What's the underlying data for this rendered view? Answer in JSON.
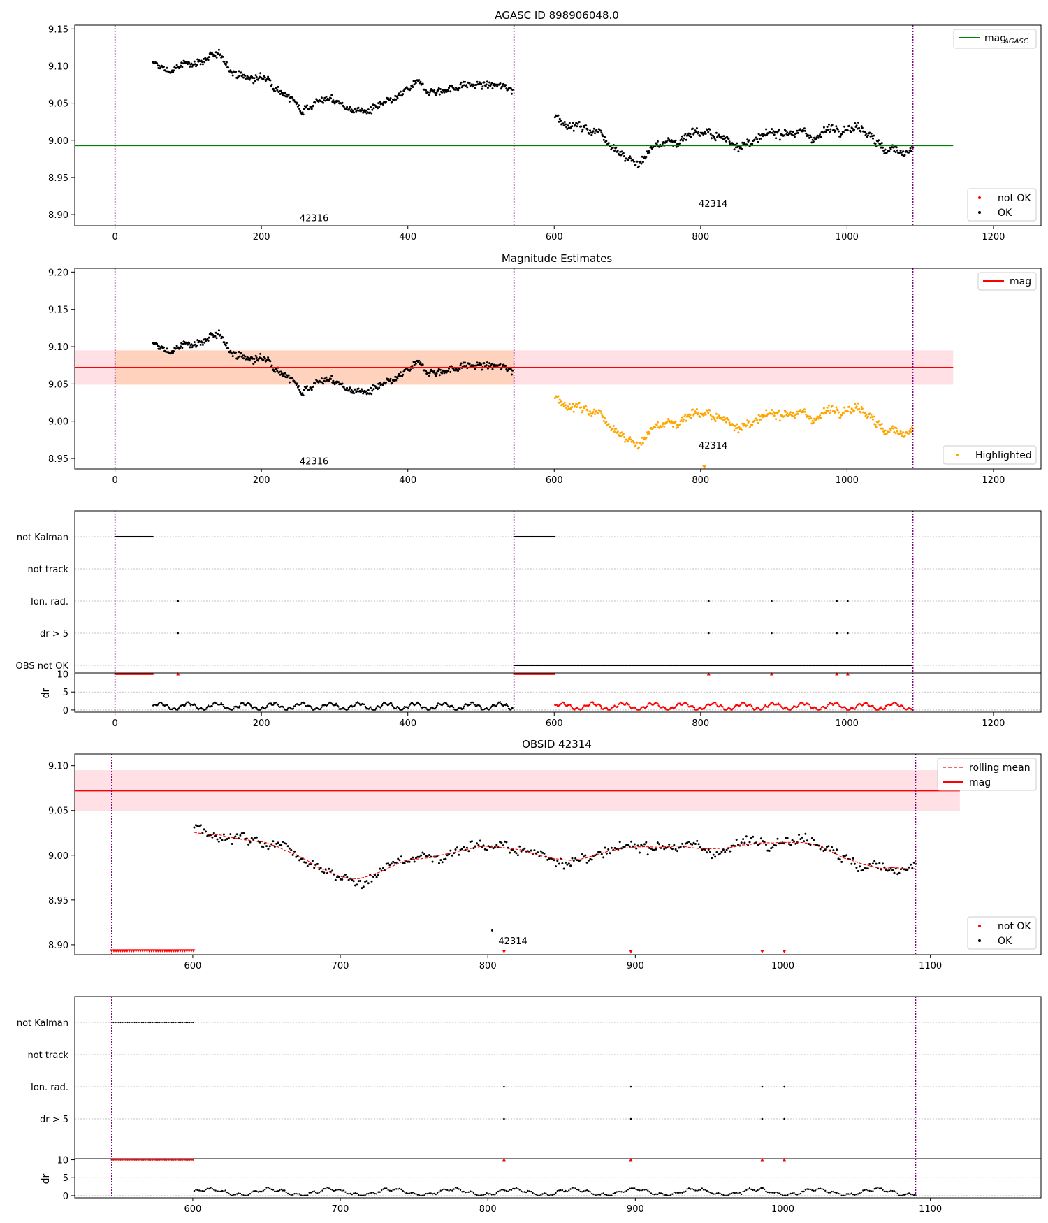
{
  "chart_data": [
    {
      "id": "p1",
      "type": "scatter",
      "title": "AGASC ID 898906048.0",
      "xlim": [
        -55,
        1265
      ],
      "ylim": [
        8.885,
        9.155
      ],
      "xticks": [
        0,
        200,
        400,
        600,
        800,
        1000,
        1200
      ],
      "yticks": [
        8.9,
        8.95,
        9.0,
        9.05,
        9.1,
        9.15
      ],
      "ytick_decimals": 2,
      "vlines": [
        0,
        545,
        1090
      ],
      "series": [
        {
          "name": "mag_AGASC",
          "kind": "hline",
          "y": 8.993,
          "x": [
            -55,
            1145
          ],
          "color": "#008000"
        }
      ],
      "scatter_segments": [
        {
          "x0": 52,
          "x1": 543,
          "n": 470,
          "ref": "obs42316",
          "color": "#000000"
        },
        {
          "x0": 601,
          "x1": 1090,
          "n": 440,
          "ref": "obs42314",
          "color": "#000000"
        }
      ],
      "annotations": [
        {
          "text": "42316",
          "x": 272,
          "y": 8.895
        },
        {
          "text": "42314",
          "x": 817,
          "y": 8.914
        }
      ],
      "legend_top": [
        {
          "label_main": "mag",
          "label_sub": "AGASC",
          "kind": "line",
          "color": "#008000"
        }
      ],
      "legend_bottom": [
        {
          "label": "not OK",
          "kind": "dot",
          "color": "#ff0000"
        },
        {
          "label": "OK",
          "kind": "dot",
          "color": "#000000"
        }
      ]
    },
    {
      "id": "p2",
      "type": "scatter",
      "title": "Magnitude Estimates",
      "xlim": [
        -55,
        1265
      ],
      "ylim": [
        8.936,
        9.205
      ],
      "xticks": [
        0,
        200,
        400,
        600,
        800,
        1000,
        1200
      ],
      "yticks": [
        8.95,
        9.0,
        9.05,
        9.1,
        9.15,
        9.2
      ],
      "ytick_decimals": 2,
      "vlines": [
        0,
        545,
        1090
      ],
      "band": {
        "x0": -55,
        "x1": 1145,
        "y0": 9.049,
        "y1": 9.095,
        "color": "rgba(255,0,40,0.12)"
      },
      "band2": {
        "x0": 0,
        "x1": 545,
        "y0": 9.049,
        "y1": 9.095,
        "color": "rgba(255,140,0,0.17)"
      },
      "series": [
        {
          "name": "mag",
          "kind": "hline",
          "y": 9.072,
          "x": [
            -55,
            1145
          ],
          "color": "#ff0000"
        }
      ],
      "scatter_segments": [
        {
          "x0": 52,
          "x1": 543,
          "n": 470,
          "ref": "obs42316",
          "color": "#000000"
        },
        {
          "x0": 601,
          "x1": 1090,
          "n": 440,
          "ref": "obs42314",
          "color": "#ffa500"
        }
      ],
      "markers": [
        {
          "x": 805,
          "y": 8.938,
          "color": "#ffa500"
        }
      ],
      "annotations": [
        {
          "text": "42316",
          "x": 272,
          "y": 8.946
        },
        {
          "text": "42314",
          "x": 817,
          "y": 8.967
        }
      ],
      "legend_top": [
        {
          "label": "mag",
          "kind": "line",
          "color": "#ff0000"
        }
      ],
      "legend_bottom": [
        {
          "label": "Highlighted",
          "kind": "dot",
          "color": "#ffa500"
        }
      ]
    },
    {
      "id": "p3",
      "type": "flags",
      "xlim": [
        -55,
        1265
      ],
      "xticks": [
        0,
        200,
        400,
        600,
        800,
        1000,
        1200
      ],
      "vlines": [
        0,
        545,
        1090
      ],
      "categories": [
        "not Kalman",
        "not track",
        "Ion. rad.",
        "dr > 5",
        "OBS not OK"
      ],
      "flag_runs": [
        {
          "cat": "not Kalman",
          "x0": 0,
          "x1": 52
        },
        {
          "cat": "not Kalman",
          "x0": 545,
          "x1": 601
        },
        {
          "cat": "OBS not OK",
          "x0": 545,
          "x1": 1090
        }
      ],
      "flag_points": [
        {
          "cat": "Ion. rad.",
          "x": [
            86,
            811,
            897,
            986,
            1001
          ]
        },
        {
          "cat": "dr > 5",
          "x": [
            86,
            811,
            897,
            986,
            1001
          ]
        }
      ],
      "dr_panel": {
        "ylabel": "dr",
        "yticks": [
          0,
          5,
          10
        ],
        "ylim": [
          -0.6,
          10.3
        ],
        "red_runs": [
          {
            "x0": 0,
            "x1": 52
          },
          {
            "x0": 545,
            "x1": 601
          }
        ],
        "red_points": [
          86,
          811,
          897,
          986,
          1001
        ],
        "segments": [
          {
            "x0": 52,
            "x1": 543,
            "n": 470,
            "color": "#000000"
          },
          {
            "x0": 601,
            "x1": 1090,
            "n": 440,
            "color": "#ff0000"
          }
        ]
      }
    },
    {
      "id": "p4",
      "type": "scatter",
      "title": "OBSID 42314",
      "xlim": [
        520,
        1175
      ],
      "ylim": [
        8.889,
        9.113
      ],
      "xticks": [
        600,
        700,
        800,
        900,
        1000,
        1100
      ],
      "yticks": [
        8.9,
        8.95,
        9.0,
        9.05,
        9.1
      ],
      "ytick_decimals": 2,
      "vlines": [
        545,
        1090
      ],
      "band": {
        "x0": 520,
        "x1": 1120,
        "y0": 9.049,
        "y1": 9.095,
        "color": "rgba(255,0,40,0.12)"
      },
      "series": [
        {
          "name": "mag",
          "kind": "hline",
          "y": 9.072,
          "x": [
            520,
            1120
          ],
          "color": "#ff0000"
        },
        {
          "name": "rolling mean",
          "kind": "rolling",
          "color": "#ff0000"
        }
      ],
      "scatter_segments": [
        {
          "x0": 601,
          "x1": 1090,
          "n": 440,
          "ref": "obs42314",
          "color": "#000000"
        }
      ],
      "extra_points": [
        {
          "x": 803,
          "y": 8.916,
          "color": "#000000"
        }
      ],
      "red_run": {
        "x0": 545,
        "x1": 601,
        "y": 8.893
      },
      "red_markers": [
        811,
        897,
        986,
        1001
      ],
      "annotations": [
        {
          "text": "42314",
          "x": 817,
          "y": 8.904
        }
      ],
      "legend_top": [
        {
          "label": "rolling mean",
          "kind": "dashed",
          "color": "#ff0000"
        },
        {
          "label": "mag",
          "kind": "line",
          "color": "#ff0000"
        }
      ],
      "legend_bottom": [
        {
          "label": "not OK",
          "kind": "dot",
          "color": "#ff0000"
        },
        {
          "label": "OK",
          "kind": "dot",
          "color": "#000000"
        }
      ]
    },
    {
      "id": "p5",
      "type": "flags",
      "xlim": [
        520,
        1175
      ],
      "xticks": [
        600,
        700,
        800,
        900,
        1000,
        1100
      ],
      "vlines": [
        545,
        1090
      ],
      "categories": [
        "not Kalman",
        "not track",
        "Ion. rad.",
        "dr > 5"
      ],
      "flag_runs": [
        {
          "cat": "not Kalman",
          "x0": 545,
          "x1": 601
        }
      ],
      "flag_points": [
        {
          "cat": "Ion. rad.",
          "x": [
            811,
            897,
            986,
            1001
          ]
        },
        {
          "cat": "dr > 5",
          "x": [
            811,
            897,
            986,
            1001
          ]
        }
      ],
      "dr_panel": {
        "ylabel": "dr",
        "yticks": [
          0,
          5,
          10
        ],
        "ylim": [
          -0.6,
          10.3
        ],
        "red_runs": [
          {
            "x0": 545,
            "x1": 601
          }
        ],
        "red_points": [
          811,
          897,
          986,
          1001
        ],
        "segments": [
          {
            "x0": 601,
            "x1": 1090,
            "n": 440,
            "color": "#000000"
          }
        ]
      }
    }
  ],
  "obs42316": {
    "anchors_x": [
      52,
      75,
      100,
      125,
      145,
      165,
      185,
      210,
      230,
      255,
      280,
      300,
      320,
      340,
      365,
      385,
      410,
      440,
      470,
      500,
      520,
      543
    ],
    "anchors_y": [
      9.102,
      9.093,
      9.103,
      9.11,
      9.112,
      9.09,
      9.083,
      9.083,
      9.066,
      9.042,
      9.055,
      9.053,
      9.043,
      9.038,
      9.045,
      9.055,
      9.075,
      9.066,
      9.073,
      9.075,
      9.072,
      9.07
    ],
    "noise": 0.0055
  },
  "obs42314": {
    "anchors_x": [
      601,
      620,
      640,
      660,
      680,
      700,
      715,
      730,
      750,
      770,
      790,
      820,
      840,
      860,
      880,
      900,
      920,
      940,
      960,
      980,
      1000,
      1020,
      1035,
      1050,
      1070,
      1090
    ],
    "anchors_y": [
      9.033,
      9.022,
      9.016,
      9.013,
      8.995,
      8.978,
      8.965,
      8.988,
      8.998,
      8.998,
      9.015,
      9.004,
      9.0,
      8.994,
      8.998,
      9.01,
      9.015,
      9.008,
      9.005,
      9.018,
      9.02,
      9.018,
      9.01,
      8.985,
      8.985,
      8.99
    ],
    "noise": 0.0065
  }
}
